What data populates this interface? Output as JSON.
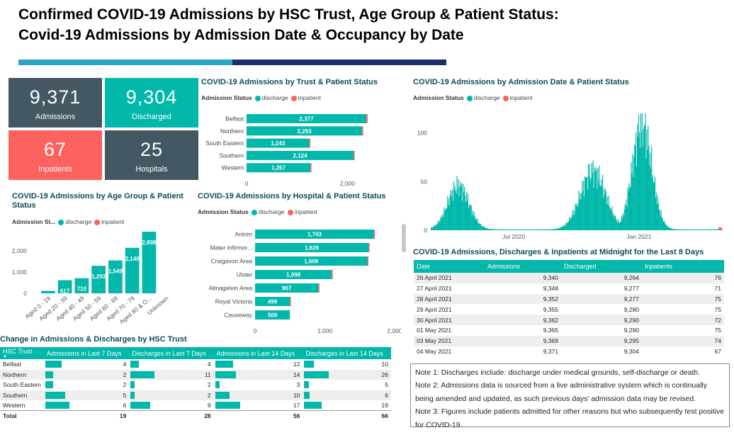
{
  "page": {
    "title_line1": "Confirmed COVID-19 Admissions by HSC Trust, Age Group & Patient Status:",
    "title_line2": "Covid-19 Admissions by Admission Date & Occupancy by Date"
  },
  "colors": {
    "teal": "#01b8aa",
    "red": "#fd625e",
    "slate": "#435863",
    "navy": "#1c2d6b",
    "accent": "#2ba6c9"
  },
  "kpis": [
    {
      "value": "9,371",
      "label": "Admissions",
      "color": "#435863"
    },
    {
      "value": "9,304",
      "label": "Discharged",
      "color": "#01b8aa"
    },
    {
      "value": "67",
      "label": "Inpatients",
      "color": "#fd625e"
    },
    {
      "value": "25",
      "label": "Hospitals",
      "color": "#435863"
    }
  ],
  "legend": {
    "title": "Admission Status",
    "title_short": "Admission St...",
    "discharge": "discharge",
    "inpatient": "inpatient"
  },
  "trust_chart": {
    "title": "COVID-19 Admissions by Trust & Patient Status",
    "chart_data": {
      "type": "bar",
      "categories": [
        "Belfast",
        "Northern",
        "South Eastern",
        "Southern",
        "Western"
      ],
      "series": [
        {
          "name": "discharge",
          "values": [
            2377,
            2293,
            1243,
            2124,
            1267
          ]
        },
        {
          "name": "inpatient",
          "values": [
            25,
            18,
            3,
            7,
            10
          ]
        }
      ],
      "data_labels": [
        "2,377",
        "2,293",
        "1,243",
        "2,124",
        "1,267"
      ],
      "xlim": [
        0,
        2600
      ],
      "xticks": [
        "0",
        "2,000"
      ]
    }
  },
  "age_chart": {
    "title": "COVID-19 Admissions by Age Group & Patient Status",
    "chart_data": {
      "type": "bar",
      "categories": [
        "Aged 0 - 19",
        "Aged 20 - 39",
        "Aged 40 - 49",
        "Aged 50 - 59",
        "Aged 60 - 69",
        "Aged 70 - 79",
        "Aged 80 & O...",
        "Unknown"
      ],
      "series": [
        {
          "name": "discharge",
          "values": [
            113,
            617,
            710,
            1293,
            1549,
            2140,
            2898,
            0
          ]
        }
      ],
      "data_labels": [
        "",
        "617",
        "710",
        "1,293",
        "1,549",
        "2,140",
        "2,898",
        ""
      ],
      "ylim": [
        0,
        3000
      ],
      "yticks": [
        "0",
        "1,000",
        "2,000"
      ]
    }
  },
  "hospital_chart": {
    "title": "COVID-19 Admissions by Hospital & Patient Status",
    "chart_data": {
      "type": "bar",
      "categories": [
        "Antrim",
        "Mater Infirmor...",
        "Craigavon Area",
        "Ulster",
        "Altnagelvin Area",
        "Royal Victoria",
        "Causeway"
      ],
      "series": [
        {
          "name": "discharge",
          "values": [
            1703,
            1626,
            1609,
            1098,
            907,
            499,
            500
          ]
        },
        {
          "name": "inpatient",
          "values": [
            10,
            5,
            8,
            4,
            5,
            2,
            0
          ]
        }
      ],
      "data_labels": [
        "1,703",
        "1,626",
        "1,609",
        "1,098",
        "907",
        "499",
        "500"
      ],
      "xlim": [
        0,
        2000
      ],
      "xticks": [
        "0",
        "1,000",
        "2,000"
      ]
    }
  },
  "date_chart": {
    "title": "COVID-19 Admissions by Admission Date & Patient Status",
    "chart_data": {
      "type": "bar",
      "x_range": [
        "2020-03-01",
        "2021-05-04"
      ],
      "ylim": [
        0,
        120
      ],
      "yticks": [
        "0",
        "50",
        "100"
      ],
      "xticks": [
        "Jul 2020",
        "Jan 2021"
      ],
      "peaks": [
        {
          "date": "2020-04-10",
          "value": 45
        },
        {
          "date": "2020-10-25",
          "value": 60
        },
        {
          "date": "2021-01-05",
          "value": 108
        }
      ]
    }
  },
  "change_table": {
    "title": "Change in Admissions & Discharges by HSC Trust",
    "headers": [
      "HSC Trust",
      "Admissions in Last 7 Days",
      "Discharges in Last 7 Days",
      "Admissions in Last 14 Days",
      "Discharges in Last 14 Days"
    ],
    "rows": [
      {
        "name": "Belfast",
        "vals": [
          4,
          4,
          12,
          10
        ]
      },
      {
        "name": "Northern",
        "vals": [
          2,
          11,
          14,
          26
        ]
      },
      {
        "name": "South Eastern",
        "vals": [
          2,
          2,
          3,
          5
        ]
      },
      {
        "name": "Southern",
        "vals": [
          5,
          2,
          10,
          6
        ]
      },
      {
        "name": "Western",
        "vals": [
          6,
          9,
          17,
          19
        ]
      }
    ],
    "total_label": "Total",
    "totals": [
      19,
      28,
      56,
      66
    ]
  },
  "midnight_table": {
    "title": "COVID-19 Admissions, Discharges & Inpatients at Midnight for the Last 8 Days",
    "headers": [
      "Date",
      "Admissions",
      "Discharged",
      "Inpatients"
    ],
    "rows": [
      [
        "26 April 2021",
        "9,340",
        "9,264",
        "76"
      ],
      [
        "27 April 2021",
        "9,348",
        "9,277",
        "71"
      ],
      [
        "28 April 2021",
        "9,352",
        "9,277",
        "75"
      ],
      [
        "29 April 2021",
        "9,355",
        "9,280",
        "75"
      ],
      [
        "30 April 2021",
        "9,362",
        "9,290",
        "72"
      ],
      [
        "01 May 2021",
        "9,365",
        "9,290",
        "75"
      ],
      [
        "03 May 2021",
        "9,369",
        "9,295",
        "74"
      ],
      [
        "04 May 2021",
        "9,371",
        "9,304",
        "67"
      ]
    ]
  },
  "notes": {
    "n1_label": "Note 1:",
    "n1_text": " Discharges include: discharge under medical grounds, self-discharge or death.",
    "n2_label": "Note 2:",
    "n2_text": " Admissions data is sourced from a live administrative system which is continually being amended and updated, as such previous days' admission data may be revised.",
    "n3_label": "Note 3:",
    "n3_text": " Figures include patients admitted for other reasons but who subsequently test positive for COVID-19."
  }
}
